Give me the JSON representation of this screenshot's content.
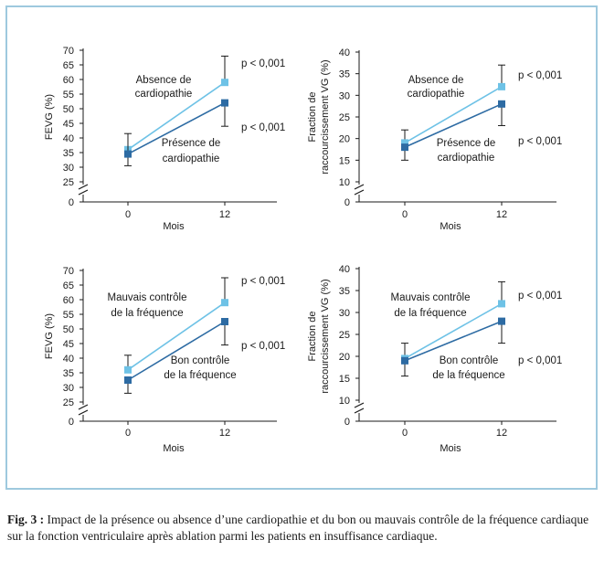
{
  "figure": {
    "caption_label": "Fig. 3 :",
    "caption_text": "Impact de la présence ou absence d’une cardiopathie et du bon ou mauvais contrôle de la fréquence cardiaque sur la fonction ventriculaire après ablation parmi les patients en insuffisance cardiaque."
  },
  "colors": {
    "series_light": "#6ec2e6",
    "series_dark": "#2d6ba3",
    "frame": "#9ec9de",
    "axis": "#1a1a1a"
  },
  "chart_data": [
    {
      "type": "line",
      "ylabel": "FEVG (%)",
      "xlabel": "Mois",
      "x_ticks": [
        "0",
        "12"
      ],
      "y_ticks": [
        25,
        30,
        35,
        40,
        45,
        50,
        55,
        60,
        65,
        70
      ],
      "ylim": [
        25,
        70
      ],
      "y_break": true,
      "series": [
        {
          "name": "Absence de cardiopathie",
          "color": "#6ec2e6",
          "points": [
            {
              "x": 0,
              "y": 36,
              "err": [
                null,
                null
              ]
            },
            {
              "x": 12,
              "y": 59,
              "err": [
                null,
                68
              ]
            }
          ]
        },
        {
          "name": "Présence de cardiopathie",
          "color": "#2d6ba3",
          "points": [
            {
              "x": 0,
              "y": 34.5,
              "err": [
                30.5,
                41.5
              ]
            },
            {
              "x": 12,
              "y": 52,
              "err": [
                44,
                null
              ]
            }
          ]
        }
      ],
      "labels": [
        {
          "series": 0,
          "lines": [
            "Absence de",
            "cardiopathie"
          ]
        },
        {
          "series": 1,
          "lines": [
            "Présence de",
            "cardiopathie"
          ]
        }
      ],
      "pvalues": [
        "p < 0,001",
        "p < 0,001"
      ]
    },
    {
      "type": "line",
      "ylabel": "Fraction de raccourcissement VG (%)",
      "xlabel": "Mois",
      "x_ticks": [
        "0",
        "12"
      ],
      "y_ticks": [
        10,
        15,
        20,
        25,
        30,
        35,
        40
      ],
      "ylim": [
        10,
        40
      ],
      "y_break": true,
      "series": [
        {
          "name": "Absence de cardiopathie",
          "color": "#6ec2e6",
          "points": [
            {
              "x": 0,
              "y": 19,
              "err": [
                null,
                22
              ]
            },
            {
              "x": 12,
              "y": 32,
              "err": [
                null,
                37
              ]
            }
          ]
        },
        {
          "name": "Présence de cardiopathie",
          "color": "#2d6ba3",
          "points": [
            {
              "x": 0,
              "y": 18,
              "err": [
                15,
                null
              ]
            },
            {
              "x": 12,
              "y": 28,
              "err": [
                23,
                null
              ]
            }
          ]
        }
      ],
      "labels": [
        {
          "series": 0,
          "lines": [
            "Absence de",
            "cardiopathie"
          ]
        },
        {
          "series": 1,
          "lines": [
            "Présence de",
            "cardiopathie"
          ]
        }
      ],
      "pvalues": [
        "p < 0,001",
        "p < 0,001"
      ]
    },
    {
      "type": "line",
      "ylabel": "FEVG (%)",
      "xlabel": "Mois",
      "x_ticks": [
        "0",
        "12"
      ],
      "y_ticks": [
        25,
        30,
        35,
        40,
        45,
        50,
        55,
        60,
        65,
        70
      ],
      "ylim": [
        25,
        70
      ],
      "y_break": true,
      "series": [
        {
          "name": "Mauvais contrôle de la fréquence",
          "color": "#6ec2e6",
          "points": [
            {
              "x": 0,
              "y": 36,
              "err": [
                null,
                41
              ]
            },
            {
              "x": 12,
              "y": 59,
              "err": [
                null,
                67.5
              ]
            }
          ]
        },
        {
          "name": "Bon contrôle de la fréquence",
          "color": "#2d6ba3",
          "points": [
            {
              "x": 0,
              "y": 32.5,
              "err": [
                28,
                null
              ]
            },
            {
              "x": 12,
              "y": 52.5,
              "err": [
                44.5,
                null
              ]
            }
          ]
        }
      ],
      "labels": [
        {
          "series": 0,
          "lines": [
            "Mauvais contrôle",
            "de la fréquence"
          ]
        },
        {
          "series": 1,
          "lines": [
            "Bon contrôle",
            "de la fréquence"
          ]
        }
      ],
      "pvalues": [
        "p < 0,001",
        "p < 0,001"
      ]
    },
    {
      "type": "line",
      "ylabel": "Fraction de raccourcissement VG (%)",
      "xlabel": "Mois",
      "x_ticks": [
        "0",
        "12"
      ],
      "y_ticks": [
        10,
        15,
        20,
        25,
        30,
        35,
        40
      ],
      "ylim": [
        10,
        40
      ],
      "y_break": true,
      "series": [
        {
          "name": "Mauvais contrôle de la fréquence",
          "color": "#6ec2e6",
          "points": [
            {
              "x": 0,
              "y": 19.5,
              "err": [
                null,
                23
              ]
            },
            {
              "x": 12,
              "y": 32,
              "err": [
                null,
                37
              ]
            }
          ]
        },
        {
          "name": "Bon contrôle de la fréquence",
          "color": "#2d6ba3",
          "points": [
            {
              "x": 0,
              "y": 19,
              "err": [
                15.5,
                null
              ]
            },
            {
              "x": 12,
              "y": 28,
              "err": [
                23,
                null
              ]
            }
          ]
        }
      ],
      "labels": [
        {
          "series": 0,
          "lines": [
            "Mauvais contrôle",
            "de la fréquence"
          ]
        },
        {
          "series": 1,
          "lines": [
            "Bon contrôle",
            "de la fréquence"
          ]
        }
      ],
      "pvalues": [
        "p < 0,001",
        "p < 0,001"
      ]
    }
  ]
}
